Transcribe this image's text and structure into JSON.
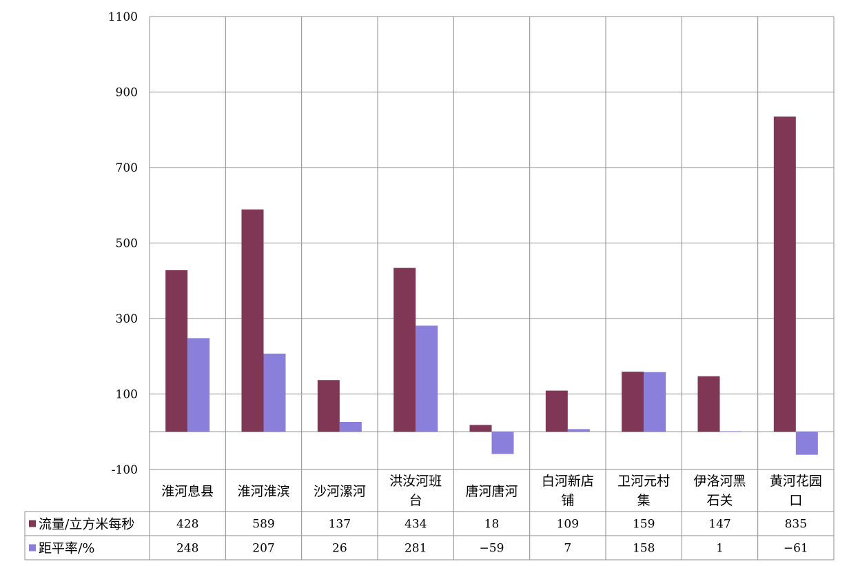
{
  "chart_data": {
    "type": "bar",
    "categories": [
      [
        "淮河息县"
      ],
      [
        "淮河淮滨"
      ],
      [
        "沙河漯河"
      ],
      [
        "洪汝河班",
        "台"
      ],
      [
        "唐河唐河"
      ],
      [
        "白河新店",
        "铺"
      ],
      [
        "卫河元村",
        "集"
      ],
      [
        "伊洛河黑",
        "石关"
      ],
      [
        "黄河花园",
        "口"
      ]
    ],
    "series": [
      {
        "name": "流量/立方米每秒",
        "color": "#7f3755",
        "values": [
          428,
          589,
          137,
          434,
          18,
          109,
          159,
          147,
          835
        ],
        "labels": [
          "428",
          "589",
          "137",
          "434",
          "18",
          "109",
          "159",
          "147",
          "835"
        ]
      },
      {
        "name": "距平率/%",
        "color": "#8a7fdb",
        "values": [
          248,
          207,
          26,
          281,
          -59,
          7,
          158,
          1,
          -61
        ],
        "labels": [
          "248",
          "207",
          "26",
          "281",
          "−59",
          "7",
          "158",
          "1",
          "−61"
        ]
      }
    ],
    "ylim": [
      -100,
      1100
    ],
    "yticks": [
      -100,
      100,
      300,
      500,
      700,
      900,
      1100
    ],
    "yticks_labels": [
      "-100",
      "100",
      "300",
      "500",
      "700",
      "900",
      "1100"
    ],
    "grid": true,
    "data_table": true
  }
}
